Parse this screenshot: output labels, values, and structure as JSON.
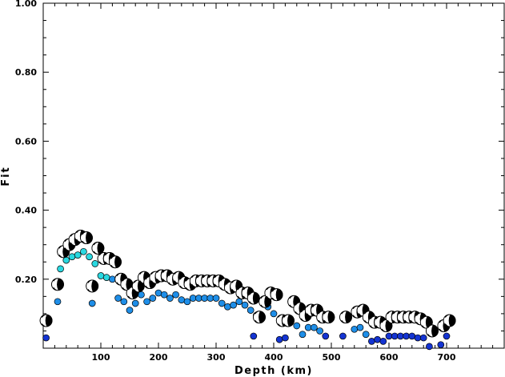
{
  "chart_data": {
    "type": "scatter",
    "title": "",
    "xlabel": "Depth (km)",
    "ylabel": "Fit",
    "xlim": [
      0,
      800
    ],
    "ylim": [
      0,
      1.0
    ],
    "x_ticks": [
      100,
      200,
      300,
      400,
      500,
      600,
      700
    ],
    "x_tick_labels": [
      "100",
      "200",
      "300",
      "400",
      "500",
      "600",
      "700"
    ],
    "y_ticks": [
      0.2,
      0.4,
      0.6,
      0.8,
      1.0
    ],
    "y_tick_labels": [
      "0.20",
      "0.40",
      "0.60",
      "0.80",
      "1.00"
    ],
    "grid": false,
    "legend": "none",
    "colors": {
      "mechanism_fill": "#000000",
      "mechanism_light": "#ffffff",
      "cyan": "#2ad8e0",
      "mid_blue": "#1e8ee8",
      "deep_blue": "#1434d2"
    },
    "series": [
      {
        "marker": "mechanism",
        "points": [
          [
            5,
            0.08
          ],
          [
            25,
            0.185
          ],
          [
            35,
            0.28
          ],
          [
            45,
            0.3
          ],
          [
            55,
            0.315
          ],
          [
            65,
            0.325
          ],
          [
            75,
            0.32
          ],
          [
            85,
            0.18
          ],
          [
            95,
            0.29
          ],
          [
            105,
            0.26
          ],
          [
            115,
            0.26
          ],
          [
            125,
            0.25
          ],
          [
            135,
            0.2
          ],
          [
            145,
            0.185
          ],
          [
            155,
            0.16
          ],
          [
            165,
            0.18
          ],
          [
            175,
            0.205
          ],
          [
            185,
            0.19
          ],
          [
            195,
            0.205
          ],
          [
            205,
            0.21
          ],
          [
            215,
            0.21
          ],
          [
            225,
            0.2
          ],
          [
            235,
            0.205
          ],
          [
            245,
            0.19
          ],
          [
            255,
            0.185
          ],
          [
            265,
            0.195
          ],
          [
            275,
            0.195
          ],
          [
            285,
            0.195
          ],
          [
            295,
            0.195
          ],
          [
            305,
            0.195
          ],
          [
            315,
            0.185
          ],
          [
            325,
            0.175
          ],
          [
            335,
            0.18
          ],
          [
            345,
            0.16
          ],
          [
            355,
            0.16
          ],
          [
            365,
            0.145
          ],
          [
            375,
            0.09
          ],
          [
            385,
            0.135
          ],
          [
            395,
            0.16
          ],
          [
            405,
            0.155
          ],
          [
            415,
            0.08
          ],
          [
            425,
            0.08
          ],
          [
            435,
            0.135
          ],
          [
            445,
            0.115
          ],
          [
            455,
            0.095
          ],
          [
            465,
            0.11
          ],
          [
            475,
            0.11
          ],
          [
            485,
            0.09
          ],
          [
            495,
            0.09
          ],
          [
            525,
            0.09
          ],
          [
            545,
            0.105
          ],
          [
            555,
            0.11
          ],
          [
            565,
            0.09
          ],
          [
            575,
            0.075
          ],
          [
            585,
            0.075
          ],
          [
            595,
            0.065
          ],
          [
            605,
            0.09
          ],
          [
            615,
            0.09
          ],
          [
            625,
            0.09
          ],
          [
            635,
            0.09
          ],
          [
            645,
            0.09
          ],
          [
            655,
            0.085
          ],
          [
            665,
            0.075
          ],
          [
            675,
            0.05
          ],
          [
            695,
            0.065
          ],
          [
            705,
            0.08
          ]
        ]
      },
      {
        "marker": "dot",
        "color": "cyan",
        "points": [
          [
            30,
            0.23
          ],
          [
            40,
            0.255
          ],
          [
            50,
            0.265
          ],
          [
            60,
            0.27
          ],
          [
            70,
            0.28
          ],
          [
            80,
            0.265
          ],
          [
            90,
            0.245
          ],
          [
            100,
            0.21
          ],
          [
            110,
            0.205
          ]
        ]
      },
      {
        "marker": "dot",
        "color": "mid_blue",
        "points": [
          [
            25,
            0.135
          ],
          [
            85,
            0.13
          ],
          [
            120,
            0.2
          ],
          [
            130,
            0.145
          ],
          [
            140,
            0.135
          ],
          [
            150,
            0.11
          ],
          [
            160,
            0.13
          ],
          [
            170,
            0.155
          ],
          [
            180,
            0.135
          ],
          [
            190,
            0.145
          ],
          [
            200,
            0.16
          ],
          [
            210,
            0.155
          ],
          [
            220,
            0.145
          ],
          [
            230,
            0.155
          ],
          [
            240,
            0.14
          ],
          [
            250,
            0.135
          ],
          [
            260,
            0.145
          ],
          [
            270,
            0.145
          ],
          [
            280,
            0.145
          ],
          [
            290,
            0.145
          ],
          [
            300,
            0.145
          ],
          [
            310,
            0.13
          ],
          [
            320,
            0.12
          ],
          [
            330,
            0.125
          ],
          [
            340,
            0.135
          ],
          [
            350,
            0.125
          ],
          [
            360,
            0.11
          ],
          [
            370,
            0.095
          ],
          [
            380,
            0.09
          ],
          [
            390,
            0.12
          ],
          [
            400,
            0.1
          ],
          [
            440,
            0.065
          ],
          [
            450,
            0.04
          ],
          [
            460,
            0.06
          ],
          [
            470,
            0.06
          ],
          [
            480,
            0.05
          ],
          [
            540,
            0.055
          ],
          [
            550,
            0.06
          ],
          [
            560,
            0.04
          ]
        ]
      },
      {
        "marker": "dot",
        "color": "deep_blue",
        "points": [
          [
            5,
            0.03
          ],
          [
            365,
            0.035
          ],
          [
            410,
            0.025
          ],
          [
            420,
            0.03
          ],
          [
            490,
            0.035
          ],
          [
            520,
            0.035
          ],
          [
            570,
            0.02
          ],
          [
            580,
            0.025
          ],
          [
            590,
            0.02
          ],
          [
            600,
            0.035
          ],
          [
            610,
            0.035
          ],
          [
            620,
            0.035
          ],
          [
            630,
            0.035
          ],
          [
            640,
            0.035
          ],
          [
            650,
            0.03
          ],
          [
            660,
            0.03
          ],
          [
            670,
            0.005
          ],
          [
            690,
            0.01
          ],
          [
            700,
            0.035
          ]
        ]
      }
    ]
  }
}
